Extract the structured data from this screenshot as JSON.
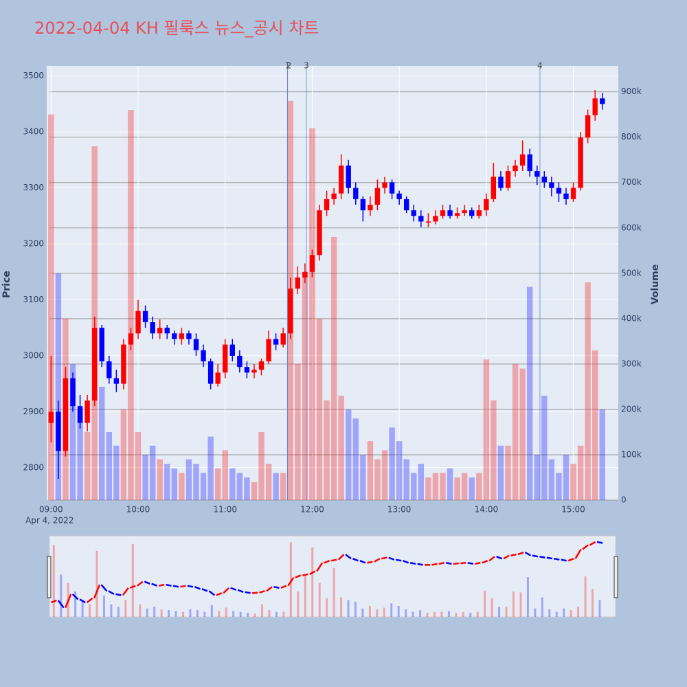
{
  "chart_data": {
    "type": "candlestick",
    "title": "2022-04-04 KH 필룩스 뉴스_공시 차트",
    "y_label": "Price",
    "y2_label": "Volume",
    "x_date_label": "Apr 4, 2022",
    "increasing_color": "#ff0000",
    "decreasing_color": "#0000ff",
    "xlim": [
      "08:57",
      "15:31"
    ],
    "xticks": [
      "09:00",
      "10:00",
      "11:00",
      "12:00",
      "13:00",
      "14:00",
      "15:00"
    ],
    "ylim": [
      2742,
      3518
    ],
    "yticks": [
      2800,
      2900,
      3000,
      3100,
      3200,
      3300,
      3400,
      3500
    ],
    "y2lim": [
      0,
      957000
    ],
    "y2ticks": [
      0,
      {
        "value": 100000,
        "label": "100k"
      },
      {
        "value": 200000,
        "label": "200k"
      },
      {
        "value": 300000,
        "label": "300k"
      },
      {
        "value": 400000,
        "label": "400k"
      },
      {
        "value": 500000,
        "label": "500k"
      },
      {
        "value": 600000,
        "label": "600k"
      },
      {
        "value": 700000,
        "label": "700k"
      },
      {
        "value": 800000,
        "label": "800k"
      },
      {
        "value": 900000,
        "label": "900k"
      }
    ],
    "annotations": [
      {
        "x": "11:43",
        "text": "1"
      },
      {
        "x": "11:43",
        "text": "2"
      },
      {
        "x": "11:56",
        "text": "3"
      },
      {
        "x": "14:37",
        "text": "4"
      }
    ],
    "x": [
      "09:00",
      "09:05",
      "09:10",
      "09:15",
      "09:20",
      "09:25",
      "09:30",
      "09:35",
      "09:40",
      "09:45",
      "09:50",
      "09:55",
      "10:00",
      "10:05",
      "10:10",
      "10:15",
      "10:20",
      "10:25",
      "10:30",
      "10:35",
      "10:40",
      "10:45",
      "10:50",
      "10:55",
      "11:00",
      "11:05",
      "11:10",
      "11:15",
      "11:20",
      "11:25",
      "11:30",
      "11:35",
      "11:40",
      "11:45",
      "11:50",
      "11:55",
      "12:00",
      "12:05",
      "12:10",
      "12:15",
      "12:20",
      "12:25",
      "12:30",
      "12:35",
      "12:40",
      "12:45",
      "12:50",
      "12:55",
      "13:00",
      "13:05",
      "13:10",
      "13:15",
      "13:20",
      "13:25",
      "13:30",
      "13:35",
      "13:40",
      "13:45",
      "13:50",
      "13:55",
      "14:00",
      "14:05",
      "14:10",
      "14:15",
      "14:20",
      "14:25",
      "14:30",
      "14:35",
      "14:40",
      "14:45",
      "14:50",
      "14:55",
      "15:00",
      "15:05",
      "15:10",
      "15:15",
      "15:20"
    ],
    "open": [
      2880,
      2900,
      2830,
      2960,
      2910,
      2880,
      2920,
      3050,
      2990,
      2960,
      2950,
      3020,
      3040,
      3080,
      3060,
      3040,
      3050,
      3040,
      3030,
      3040,
      3030,
      3010,
      2990,
      2950,
      2970,
      3020,
      3000,
      2980,
      2970,
      2975,
      2990,
      3030,
      3020,
      3040,
      3120,
      3140,
      3150,
      3180,
      3260,
      3280,
      3290,
      3340,
      3300,
      3280,
      3260,
      3270,
      3300,
      3310,
      3290,
      3280,
      3260,
      3250,
      3240,
      3240,
      3250,
      3260,
      3250,
      3255,
      3260,
      3250,
      3260,
      3280,
      3320,
      3300,
      3330,
      3340,
      3360,
      3330,
      3320,
      3310,
      3300,
      3290,
      3280,
      3300,
      3390,
      3430,
      3460
    ],
    "high": [
      3000,
      2920,
      2980,
      2970,
      2930,
      2930,
      3070,
      3055,
      3000,
      2975,
      3030,
      3050,
      3100,
      3090,
      3070,
      3065,
      3055,
      3045,
      3050,
      3045,
      3040,
      3020,
      2995,
      2985,
      3030,
      3030,
      3010,
      2990,
      2985,
      2995,
      3045,
      3040,
      3050,
      3140,
      3160,
      3165,
      3190,
      3270,
      3295,
      3300,
      3360,
      3350,
      3310,
      3285,
      3285,
      3315,
      3320,
      3315,
      3295,
      3285,
      3270,
      3260,
      3255,
      3260,
      3270,
      3270,
      3265,
      3270,
      3265,
      3270,
      3290,
      3345,
      3330,
      3340,
      3350,
      3385,
      3370,
      3340,
      3330,
      3320,
      3310,
      3300,
      3310,
      3400,
      3440,
      3475,
      3470
    ],
    "low": [
      2845,
      2780,
      2820,
      2900,
      2870,
      2865,
      2910,
      2980,
      2950,
      2935,
      2940,
      3010,
      3030,
      3050,
      3030,
      3030,
      3030,
      3020,
      3020,
      3020,
      3000,
      2980,
      2940,
      2945,
      2960,
      2990,
      2970,
      2960,
      2960,
      2965,
      2985,
      3010,
      3015,
      3030,
      3110,
      3130,
      3140,
      3170,
      3250,
      3270,
      3280,
      3290,
      3270,
      3240,
      3250,
      3260,
      3290,
      3280,
      3270,
      3255,
      3240,
      3230,
      3230,
      3235,
      3245,
      3245,
      3245,
      3250,
      3245,
      3245,
      3250,
      3275,
      3295,
      3295,
      3320,
      3330,
      3320,
      3305,
      3300,
      3285,
      3275,
      3270,
      3275,
      3295,
      3380,
      3420,
      3440
    ],
    "close": [
      2900,
      2830,
      2960,
      2910,
      2880,
      2920,
      3050,
      2990,
      2960,
      2950,
      3020,
      3040,
      3080,
      3060,
      3040,
      3050,
      3040,
      3030,
      3040,
      3030,
      3010,
      2990,
      2950,
      2970,
      3020,
      3000,
      2980,
      2970,
      2975,
      2990,
      3030,
      3020,
      3040,
      3120,
      3140,
      3150,
      3180,
      3260,
      3280,
      3290,
      3340,
      3300,
      3280,
      3260,
      3270,
      3300,
      3310,
      3290,
      3280,
      3260,
      3250,
      3240,
      3240,
      3250,
      3260,
      3250,
      3255,
      3260,
      3250,
      3260,
      3280,
      3320,
      3300,
      3330,
      3340,
      3360,
      3330,
      3320,
      3310,
      3300,
      3290,
      3280,
      3300,
      3390,
      3430,
      3460,
      3450
    ],
    "volume": [
      850000,
      500000,
      400000,
      300000,
      200000,
      150000,
      780000,
      250000,
      150000,
      120000,
      200000,
      860000,
      150000,
      100000,
      120000,
      90000,
      80000,
      70000,
      60000,
      90000,
      80000,
      60000,
      140000,
      70000,
      110000,
      70000,
      60000,
      50000,
      40000,
      150000,
      80000,
      60000,
      60000,
      880000,
      300000,
      500000,
      820000,
      400000,
      220000,
      580000,
      230000,
      200000,
      180000,
      100000,
      130000,
      90000,
      110000,
      160000,
      130000,
      90000,
      60000,
      80000,
      50000,
      60000,
      60000,
      70000,
      50000,
      60000,
      50000,
      60000,
      310000,
      220000,
      120000,
      120000,
      300000,
      290000,
      470000,
      100000,
      230000,
      90000,
      60000,
      100000,
      80000,
      120000,
      480000,
      330000,
      200000
    ]
  }
}
